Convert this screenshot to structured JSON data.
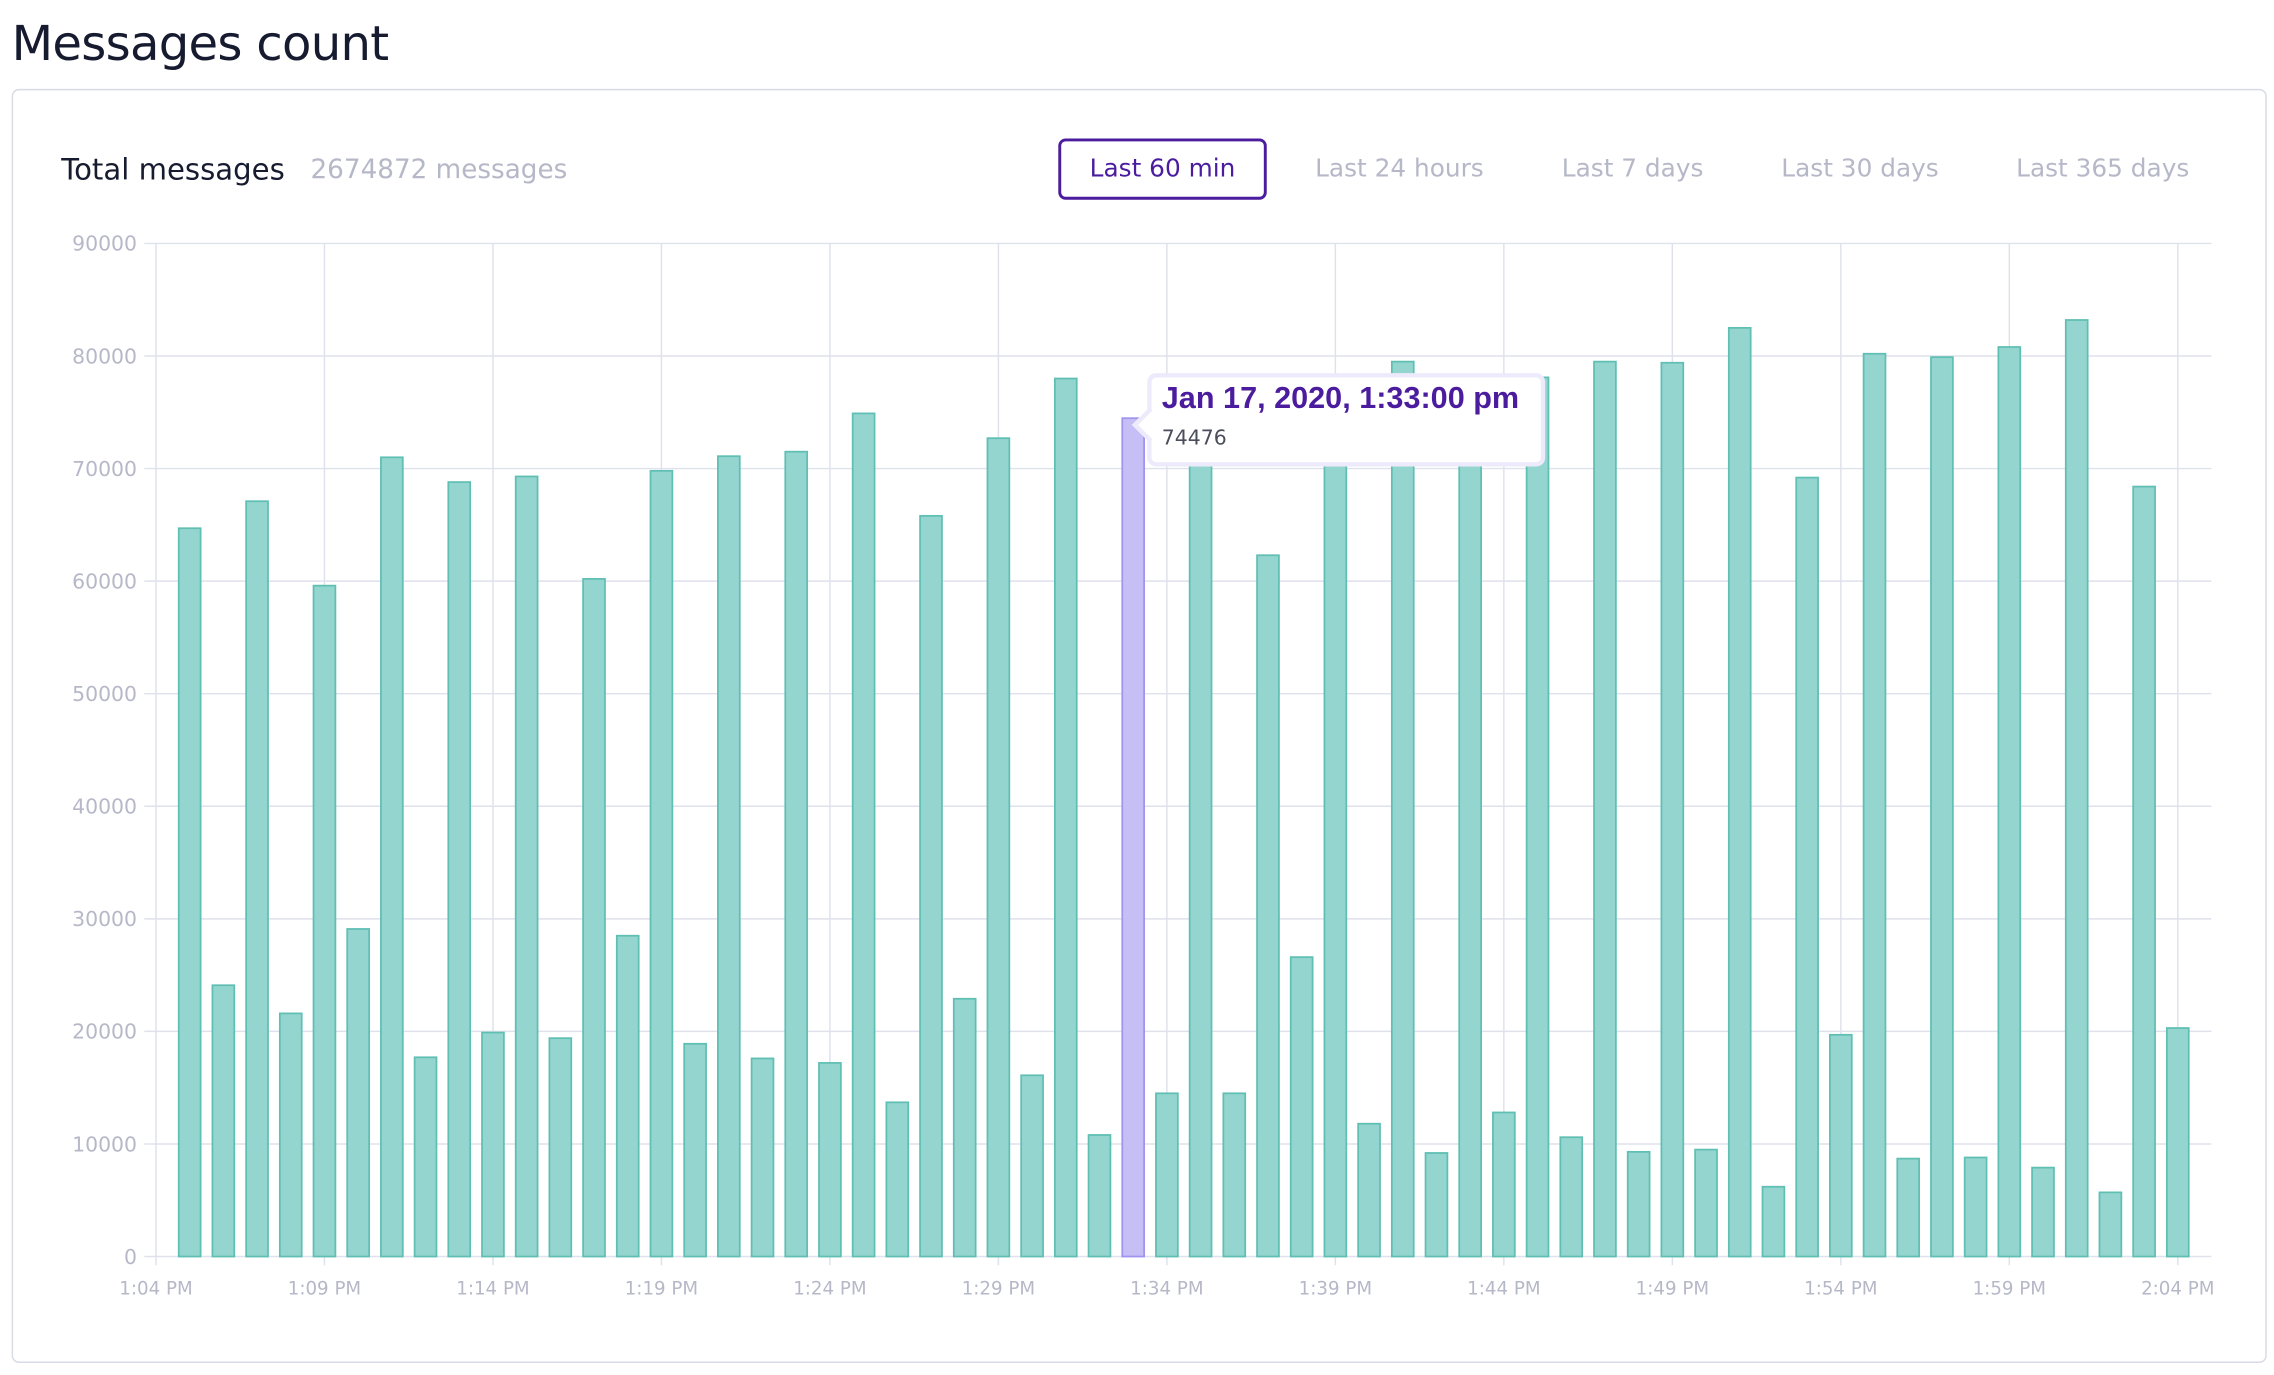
{
  "page_title": "Messages count",
  "summary": {
    "label": "Total messages",
    "value": "2674872 messages"
  },
  "ranges": [
    {
      "label": "Last 60 min",
      "active": true
    },
    {
      "label": "Last 24 hours",
      "active": false
    },
    {
      "label": "Last 7 days",
      "active": false
    },
    {
      "label": "Last 30 days",
      "active": false
    },
    {
      "label": "Last 365 days",
      "active": false
    }
  ],
  "tooltip": {
    "title": "Jan 17, 2020, 1:33:00 pm",
    "value": "74476"
  },
  "colors": {
    "bar": "#95d5cf",
    "bar_stroke": "#5fbfb3",
    "highlight": "#c5bff5",
    "highlight_stroke": "#9f94f0",
    "accent": "#4b1c9e",
    "grid": "#dfe1ec"
  },
  "chart_data": {
    "type": "bar",
    "title": "",
    "xlabel": "",
    "ylabel": "",
    "ylim": [
      0,
      90000
    ],
    "yticks": [
      "0",
      "10000",
      "20000",
      "30000",
      "40000",
      "50000",
      "60000",
      "70000",
      "80000",
      "90000"
    ],
    "xticks": [
      "1:04 PM",
      "1:09 PM",
      "1:14 PM",
      "1:19 PM",
      "1:24 PM",
      "1:29 PM",
      "1:34 PM",
      "1:39 PM",
      "1:44 PM",
      "1:49 PM",
      "1:54 PM",
      "1:59 PM",
      "2:04 PM"
    ],
    "x_start": "1:05 PM",
    "x_interval_minutes": 1,
    "highlighted_index": 28,
    "grid": true,
    "values": [
      64700,
      24100,
      67100,
      21600,
      59600,
      29100,
      71000,
      17700,
      68800,
      19900,
      69300,
      19400,
      60200,
      28500,
      69800,
      18900,
      71100,
      17600,
      71500,
      17200,
      74900,
      13700,
      65800,
      22900,
      72700,
      16100,
      78000,
      10800,
      74476,
      14500,
      73000,
      14500,
      62300,
      26600,
      71500,
      11800,
      79500,
      9200,
      72000,
      12800,
      78100,
      10600,
      79500,
      9300,
      79400,
      9500,
      82500,
      6200,
      69200,
      19700,
      80200,
      8700,
      79900,
      8800,
      80800,
      7900,
      83200,
      5700,
      68400,
      20300
    ]
  }
}
